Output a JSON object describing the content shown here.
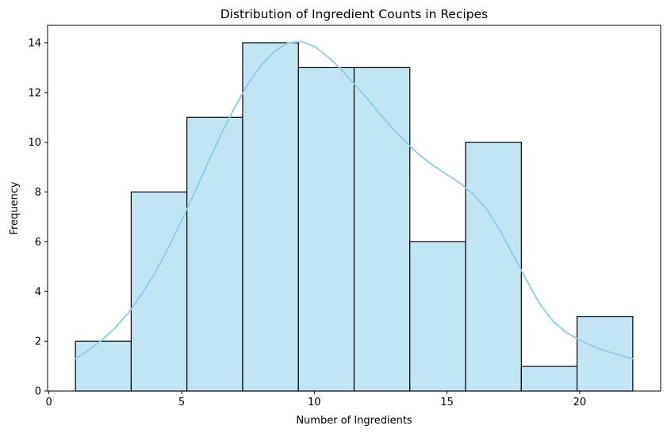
{
  "chart_data": {
    "type": "bar",
    "title": "Distribution of Ingredient Counts in Recipes",
    "xlabel": "Number of Ingredients",
    "ylabel": "Frequency",
    "xlim": [
      -0.05,
      23.05
    ],
    "ylim": [
      0,
      14.7
    ],
    "x_ticks": [
      0,
      5,
      10,
      15,
      20
    ],
    "y_ticks": [
      0,
      2,
      4,
      6,
      8,
      10,
      12,
      14
    ],
    "bins": [
      {
        "start": 1.0,
        "end": 3.1,
        "count": 2
      },
      {
        "start": 3.1,
        "end": 5.2,
        "count": 8
      },
      {
        "start": 5.2,
        "end": 7.3,
        "count": 11
      },
      {
        "start": 7.3,
        "end": 9.4,
        "count": 14
      },
      {
        "start": 9.4,
        "end": 11.5,
        "count": 13
      },
      {
        "start": 11.5,
        "end": 13.6,
        "count": 13
      },
      {
        "start": 13.6,
        "end": 15.7,
        "count": 6
      },
      {
        "start": 15.7,
        "end": 17.8,
        "count": 10
      },
      {
        "start": 17.8,
        "end": 19.9,
        "count": 1
      },
      {
        "start": 19.9,
        "end": 22.0,
        "count": 3
      }
    ],
    "kde": [
      [
        1.0,
        1.3
      ],
      [
        1.5,
        1.65
      ],
      [
        2.0,
        2.05
      ],
      [
        2.5,
        2.55
      ],
      [
        3.0,
        3.15
      ],
      [
        3.5,
        3.9
      ],
      [
        4.0,
        4.75
      ],
      [
        4.5,
        5.75
      ],
      [
        5.0,
        6.85
      ],
      [
        5.5,
        8.0
      ],
      [
        6.0,
        9.2
      ],
      [
        6.5,
        10.35
      ],
      [
        7.0,
        11.4
      ],
      [
        7.5,
        12.35
      ],
      [
        8.0,
        13.1
      ],
      [
        8.5,
        13.65
      ],
      [
        9.0,
        14.0
      ],
      [
        9.5,
        14.05
      ],
      [
        10.0,
        13.85
      ],
      [
        10.5,
        13.45
      ],
      [
        11.0,
        12.95
      ],
      [
        11.5,
        12.35
      ],
      [
        12.0,
        11.75
      ],
      [
        12.5,
        11.1
      ],
      [
        13.0,
        10.5
      ],
      [
        13.5,
        9.95
      ],
      [
        14.0,
        9.45
      ],
      [
        14.5,
        9.05
      ],
      [
        15.0,
        8.7
      ],
      [
        15.5,
        8.35
      ],
      [
        16.0,
        7.9
      ],
      [
        16.5,
        7.3
      ],
      [
        17.0,
        6.45
      ],
      [
        17.5,
        5.45
      ],
      [
        18.0,
        4.45
      ],
      [
        18.5,
        3.5
      ],
      [
        19.0,
        2.8
      ],
      [
        19.5,
        2.35
      ],
      [
        20.0,
        2.05
      ],
      [
        20.5,
        1.8
      ],
      [
        21.0,
        1.6
      ],
      [
        21.5,
        1.45
      ],
      [
        22.0,
        1.3
      ]
    ],
    "colors": {
      "bar_fill": "#c2e5f4",
      "bar_edge": "#000000",
      "kde_line": "#87ceeb"
    },
    "grid": false,
    "legend": "none"
  }
}
